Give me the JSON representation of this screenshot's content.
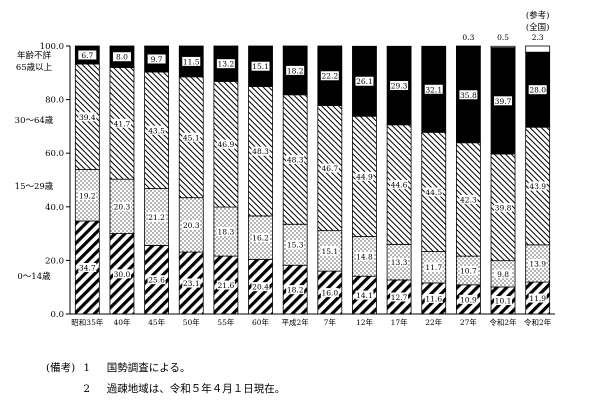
{
  "chart_data": {
    "type": "bar",
    "stacked": true,
    "ylim": [
      0,
      100
    ],
    "yticks": [
      "0.0",
      "20.0",
      "40.0",
      "60.0",
      "80.0",
      "100.0"
    ],
    "categories": [
      "昭和35年",
      "40年",
      "45年",
      "50年",
      "55年",
      "60年",
      "平成2年",
      "7年",
      "12年",
      "17年",
      "22年",
      "27年",
      "令和2年",
      "令和2年"
    ],
    "series": [
      {
        "name": "0～14歳",
        "pattern": "diag-thick",
        "values": [
          34.7,
          30.0,
          25.6,
          23.1,
          21.6,
          20.4,
          18.2,
          16.0,
          14.1,
          12.7,
          11.6,
          10.9,
          10.1,
          11.9
        ]
      },
      {
        "name": "15～29歳",
        "pattern": "dots",
        "values": [
          19.2,
          20.3,
          21.2,
          20.3,
          18.3,
          16.2,
          15.3,
          15.1,
          14.8,
          13.3,
          11.7,
          10.7,
          9.8,
          13.9
        ]
      },
      {
        "name": "30～64歳",
        "pattern": "diag-thin",
        "values": [
          39.4,
          41.7,
          43.5,
          45.1,
          46.9,
          48.3,
          48.3,
          46.7,
          44.9,
          44.6,
          44.5,
          42.3,
          39.8,
          43.9
        ]
      },
      {
        "name": "65歳以上",
        "pattern": "solid-black",
        "values": [
          6.7,
          8.0,
          9.7,
          11.5,
          13.2,
          15.1,
          18.2,
          22.2,
          26.1,
          29.3,
          32.1,
          35.8,
          39.7,
          28.0
        ]
      },
      {
        "name": "年齢不詳",
        "pattern": "white",
        "values": [
          0,
          0,
          0,
          0,
          0,
          0,
          0,
          0,
          0,
          0,
          0,
          0.3,
          0.5,
          2.3
        ]
      }
    ],
    "top_labels": [
      "",
      "",
      "",
      "",
      "",
      "",
      "",
      "",
      "",
      "",
      "",
      "0.3",
      "0.5",
      "2.3"
    ],
    "annotation_lines": [
      "(参考)",
      "(全国)"
    ],
    "legend_labels": {
      "unknown_and_65": [
        "年齢不詳",
        "65歳以上"
      ],
      "age_30_64": "30～64歳",
      "age_15_29": "15～29歳",
      "age_0_14": "0～14歳"
    }
  },
  "notes": {
    "prefix": "(備考)",
    "items": [
      {
        "num": "1",
        "text": "国勢調査による。"
      },
      {
        "num": "2",
        "text": "過疎地域は、令和５年４月１日現在。"
      }
    ]
  }
}
